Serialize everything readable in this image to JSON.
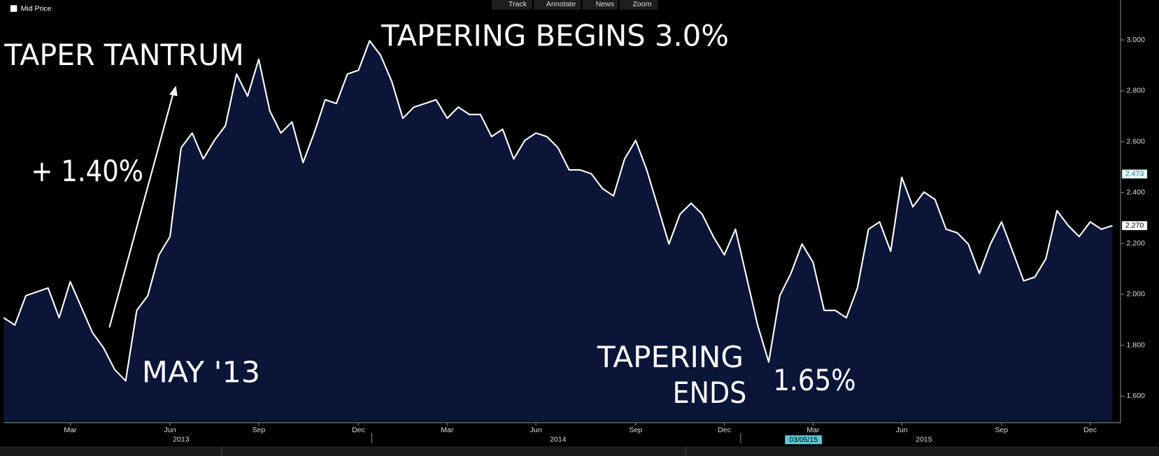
{
  "toolbar": [
    "Track",
    "Annotate",
    "News",
    "Zoom"
  ],
  "chart_data": {
    "type": "area",
    "series": [
      {
        "name": "Mid Price",
        "color": "#ffffff",
        "fill": "#0b1538",
        "values": [
          1.908,
          1.879,
          1.995,
          2.01,
          2.025,
          1.908,
          2.05,
          1.95,
          1.85,
          1.79,
          1.705,
          1.66,
          1.937,
          1.995,
          2.155,
          2.227,
          2.576,
          2.634,
          2.532,
          2.605,
          2.663,
          2.866,
          2.779,
          2.924,
          2.721,
          2.634,
          2.678,
          2.518,
          2.634,
          2.765,
          2.75,
          2.866,
          2.881,
          2.997,
          2.939,
          2.837,
          2.692,
          2.736,
          2.75,
          2.765,
          2.692,
          2.736,
          2.707,
          2.707,
          2.62,
          2.649,
          2.532,
          2.605,
          2.634,
          2.62,
          2.576,
          2.489,
          2.489,
          2.474,
          2.416,
          2.387,
          2.532,
          2.605,
          2.489,
          2.344,
          2.198,
          2.315,
          2.358,
          2.315,
          2.227,
          2.155,
          2.256,
          2.068,
          1.879,
          1.734,
          1.995,
          2.082,
          2.198,
          2.126,
          1.937,
          1.937,
          1.908,
          2.025,
          2.256,
          2.285,
          2.169,
          2.46,
          2.344,
          2.402,
          2.373,
          2.256,
          2.242,
          2.198,
          2.082,
          2.198,
          2.285,
          2.169,
          2.053,
          2.068,
          2.14,
          2.329,
          2.271,
          2.227,
          2.285,
          2.256,
          2.27
        ]
      }
    ],
    "categories": [
      null,
      null,
      null,
      null,
      null,
      null,
      "Mar",
      null,
      null,
      null,
      null,
      null,
      null,
      null,
      null,
      "Jun",
      null,
      null,
      null,
      null,
      null,
      null,
      null,
      "Sep",
      null,
      null,
      null,
      null,
      null,
      null,
      null,
      null,
      "Dec",
      null,
      null,
      null,
      null,
      null,
      null,
      null,
      "Mar",
      null,
      null,
      null,
      null,
      null,
      null,
      null,
      "Jun",
      null,
      null,
      null,
      null,
      null,
      null,
      null,
      null,
      "Sep",
      null,
      null,
      null,
      null,
      null,
      null,
      null,
      "Dec",
      null,
      null,
      null,
      null,
      null,
      null,
      null,
      "Mar",
      null,
      null,
      null,
      null,
      null,
      null,
      null,
      "Jun",
      null,
      null,
      null,
      null,
      null,
      null,
      null,
      null,
      "Sep",
      null,
      null,
      null,
      null,
      null,
      null,
      null,
      "Dec",
      null,
      null
    ],
    "years": [
      null,
      null,
      null,
      null,
      null,
      null,
      null,
      null,
      null,
      null,
      null,
      null,
      null,
      null,
      null,
      null,
      "2013",
      null,
      null,
      null,
      null,
      null,
      null,
      null,
      null,
      null,
      null,
      null,
      null,
      null,
      null,
      null,
      null,
      null,
      null,
      null,
      null,
      null,
      null,
      null,
      null,
      null,
      null,
      null,
      null,
      null,
      null,
      null,
      null,
      null,
      "2014",
      null,
      null,
      null,
      null,
      null,
      null,
      null,
      null,
      null,
      null,
      null,
      null,
      null,
      null,
      null,
      null,
      null,
      null,
      null,
      null,
      null,
      null,
      null,
      null,
      null,
      null,
      null,
      null,
      null,
      null,
      null,
      null,
      "2015",
      null,
      null,
      null,
      null,
      null,
      null,
      null,
      null,
      null,
      null,
      null,
      null,
      null,
      null,
      null,
      null,
      null
    ],
    "ylim": [
      1.5,
      3.15
    ],
    "yticks": [
      {
        "value": 1.6,
        "label": "1.600"
      },
      {
        "value": 1.8,
        "label": "1.800"
      },
      {
        "value": 2.0,
        "label": "2.000"
      },
      {
        "value": 2.2,
        "label": "2.200"
      },
      {
        "value": 2.4,
        "label": "2.400"
      },
      {
        "value": 2.6,
        "label": "2.600"
      },
      {
        "value": 2.8,
        "label": "2.800"
      },
      {
        "value": 3.0,
        "label": "3.000"
      }
    ],
    "last_value": {
      "value": 2.27,
      "label": "2.270"
    },
    "reference_value": {
      "value": 2.473,
      "label": "2.473"
    },
    "cursor_date": "03/05/15",
    "annotations": [
      "TAPER TANTRUM",
      "+ 1.40%",
      "MAY '13",
      "TAPERING BEGINS 3.0%",
      "TAPERING",
      "ENDS",
      "1.65%"
    ],
    "grid": false
  }
}
